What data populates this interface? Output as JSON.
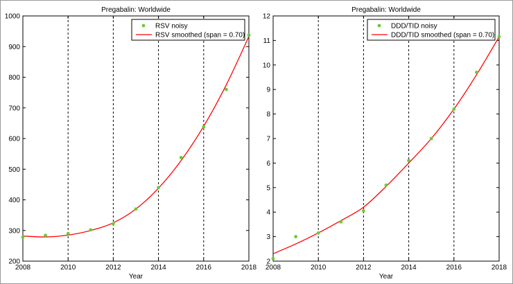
{
  "colors": {
    "noisy": "#66cc33",
    "smoothed": "#ff0000",
    "grid": "#000000",
    "axis": "#000000"
  },
  "chart_data": [
    {
      "type": "scatter",
      "title": "Pregabalin: Worldwide",
      "xlabel": "Year",
      "ylabel": "",
      "xlim": [
        2008,
        2018
      ],
      "ylim": [
        200,
        1000
      ],
      "xticks": [
        "2008",
        "2010",
        "2012",
        "2014",
        "2016",
        "2018"
      ],
      "yticks": [
        "200",
        "300",
        "400",
        "500",
        "600",
        "700",
        "800",
        "900",
        "1000"
      ],
      "grid": "vertical-dashed",
      "legend_position": "top-right",
      "series": [
        {
          "name": "RSV noisy",
          "style": "markers",
          "x": [
            2008,
            2009,
            2010,
            2011,
            2012,
            2013,
            2014,
            2015,
            2016,
            2017,
            2018
          ],
          "y": [
            278,
            284,
            290,
            302,
            322,
            370,
            440,
            538,
            638,
            760,
            937
          ]
        },
        {
          "name": "RSV smoothed (span = 0.70)",
          "style": "line",
          "x": [
            2008,
            2009,
            2010,
            2011,
            2012,
            2013,
            2014,
            2015,
            2016,
            2017,
            2018
          ],
          "y": [
            282,
            279,
            285,
            300,
            325,
            370,
            438,
            528,
            640,
            775,
            933
          ]
        }
      ]
    },
    {
      "type": "scatter",
      "title": "Pregabalin: Worldwide",
      "xlabel": "Year",
      "ylabel": "",
      "xlim": [
        2008,
        2018
      ],
      "ylim": [
        2,
        12
      ],
      "xticks": [
        "2008",
        "2010",
        "2012",
        "2014",
        "2016",
        "2018"
      ],
      "yticks": [
        "2",
        "3",
        "4",
        "5",
        "6",
        "7",
        "8",
        "9",
        "10",
        "11",
        "12"
      ],
      "grid": "vertical-dashed",
      "legend_position": "top-right",
      "series": [
        {
          "name": "DDD/TID noisy",
          "style": "markers",
          "x": [
            2008,
            2009,
            2010,
            2011,
            2012,
            2013,
            2014,
            2015,
            2016,
            2017,
            2018
          ],
          "y": [
            2.1,
            3.0,
            3.15,
            3.6,
            4.05,
            5.1,
            6.1,
            7.0,
            8.2,
            9.7,
            11.15
          ]
        },
        {
          "name": "DDD/TID smoothed (span = 0.70)",
          "style": "line",
          "x": [
            2008,
            2009,
            2010,
            2011,
            2012,
            2013,
            2014,
            2015,
            2016,
            2017,
            2018
          ],
          "y": [
            2.3,
            2.7,
            3.15,
            3.65,
            4.2,
            5.05,
            6.0,
            7.0,
            8.2,
            9.6,
            11.15
          ]
        }
      ]
    }
  ]
}
